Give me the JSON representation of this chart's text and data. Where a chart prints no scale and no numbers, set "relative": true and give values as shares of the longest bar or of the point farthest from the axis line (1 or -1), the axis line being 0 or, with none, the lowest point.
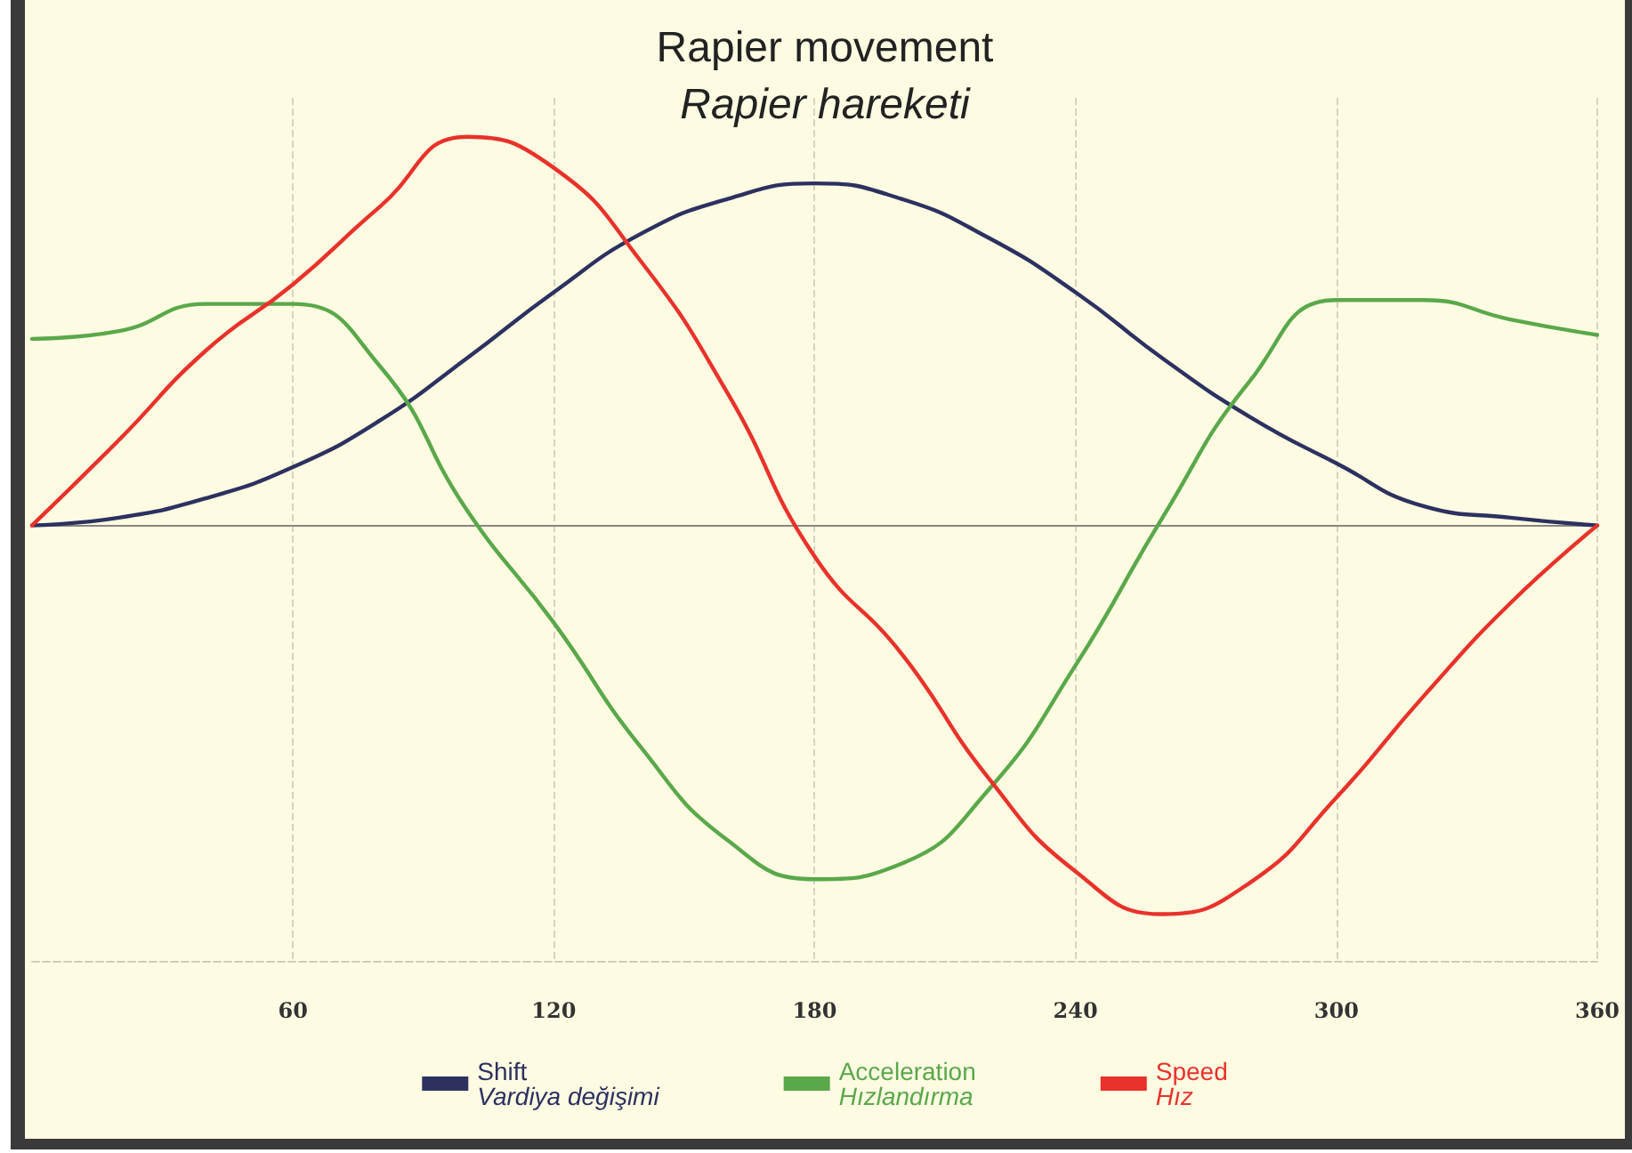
{
  "chart_data": {
    "type": "line",
    "title": "Rapier movement",
    "subtitle": "Rapier hareketi",
    "relative": true,
    "x": [
      0,
      20,
      40,
      60,
      80,
      100,
      120,
      140,
      160,
      180,
      200,
      220,
      240,
      260,
      280,
      300,
      320,
      340,
      360
    ],
    "series": [
      {
        "name": "Shift\nVardiya değişimi",
        "color": "#2c3160",
        "values": [
          0,
          0.02,
          0.07,
          0.15,
          0.27,
          0.43,
          0.6,
          0.75,
          0.84,
          0.88,
          0.84,
          0.74,
          0.6,
          0.43,
          0.28,
          0.16,
          0.05,
          0.02,
          0
        ]
      },
      {
        "name": "Acceleration\nHızlandırma",
        "color": "#5aa84a",
        "values": [
          0.48,
          0.5,
          0.57,
          0.57,
          0.41,
          0.04,
          -0.25,
          -0.57,
          -0.81,
          -0.91,
          -0.87,
          -0.68,
          -0.36,
          0.02,
          0.37,
          0.58,
          0.58,
          0.53,
          0.49
        ]
      },
      {
        "name": "Speed\nHız",
        "color": "#e8322a",
        "values": [
          0,
          0.22,
          0.45,
          0.62,
          0.82,
          1.0,
          0.92,
          0.68,
          0.34,
          -0.08,
          -0.33,
          -0.65,
          -0.89,
          -1.0,
          -0.92,
          -0.7,
          -0.44,
          -0.2,
          0
        ]
      }
    ],
    "xlim": [
      0,
      360
    ],
    "xticks": [
      60,
      120,
      180,
      240,
      300,
      360
    ],
    "grid": "x",
    "legend": "bottom",
    "marker": "none",
    "line_style": "solid"
  }
}
